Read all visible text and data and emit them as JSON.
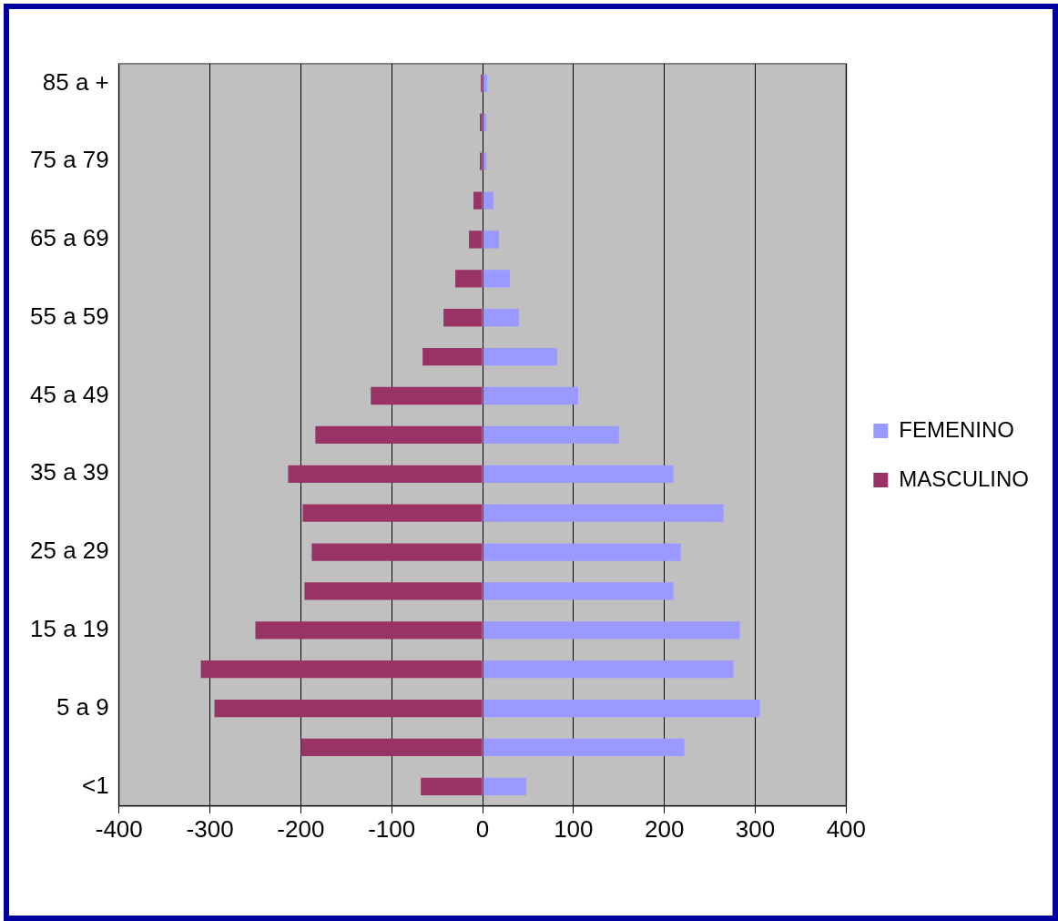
{
  "chart_data": {
    "type": "bar",
    "orientation": "horizontal",
    "stacked": true,
    "categories": [
      "85 a +",
      null,
      "75 a 79",
      null,
      "65 a 69",
      null,
      "55 a 59",
      null,
      "45 a 49",
      null,
      "35 a 39",
      null,
      "25 a 29",
      null,
      "15 a 19",
      null,
      "5 a 9",
      null,
      "<1"
    ],
    "series": [
      {
        "name": "FEMENINO",
        "color": "#9999ff",
        "values": [
          5,
          4,
          4,
          12,
          18,
          30,
          40,
          82,
          105,
          150,
          210,
          265,
          218,
          210,
          283,
          276,
          305,
          222,
          48
        ]
      },
      {
        "name": "MASCULINO",
        "color": "#993366",
        "values": [
          -2,
          -3,
          -3,
          -10,
          -15,
          -30,
          -43,
          -66,
          -123,
          -184,
          -214,
          -198,
          -188,
          -196,
          -250,
          -310,
          -295,
          -200,
          -68
        ]
      }
    ],
    "xlim": [
      -400,
      400
    ],
    "xticks": [
      -400,
      -300,
      -200,
      -100,
      0,
      100,
      200,
      300,
      400
    ],
    "grid": "x",
    "legend": "right"
  }
}
